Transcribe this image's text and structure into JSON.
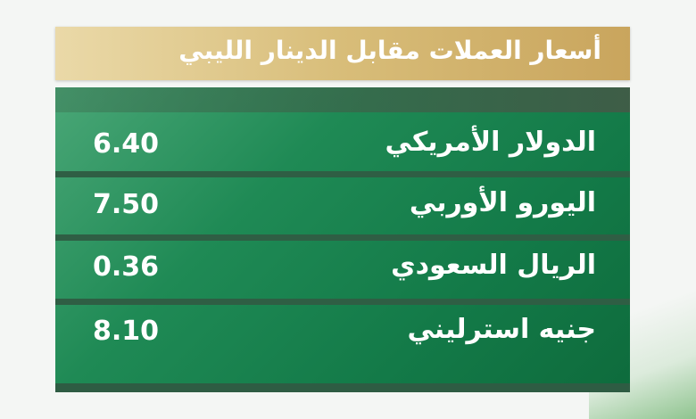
{
  "header": {
    "title": "أسعار العملات مقابل الدينار الليبي"
  },
  "rates": [
    {
      "currency": "الدولار الأمريكي",
      "value": "6.40"
    },
    {
      "currency": "اليورو الأوربي",
      "value": "7.50"
    },
    {
      "currency": "الريال السعودي",
      "value": "0.36"
    },
    {
      "currency": "جنيه استرليني",
      "value": "8.10"
    }
  ],
  "colors": {
    "gold": "#d8bd79",
    "green": "#137a48"
  }
}
